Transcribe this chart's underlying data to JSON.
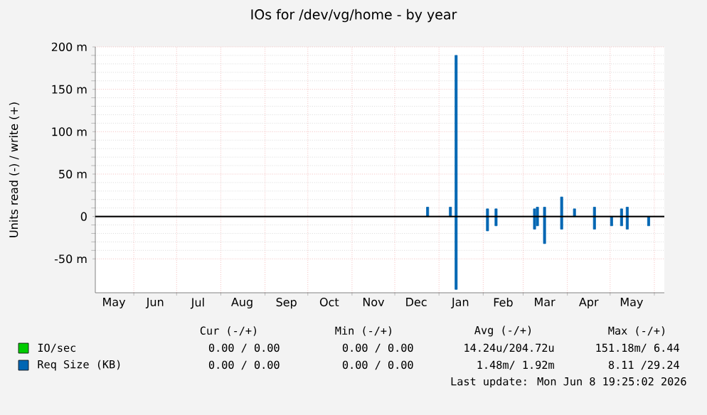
{
  "chart_data": {
    "type": "bar",
    "title": "IOs for /dev/vg/home - by year",
    "ylabel": "Units read (-) / write (+)",
    "x": [
      "2025-12-24",
      "2026-01-09",
      "2026-01-13",
      "2026-02-04",
      "2026-02-10",
      "2026-03-09",
      "2026-03-11",
      "2026-03-16",
      "2026-03-28",
      "2026-04-06",
      "2026-04-20",
      "2026-05-02",
      "2026-05-09",
      "2026-05-13",
      "2026-05-28"
    ],
    "series": [
      {
        "name": "IO/sec",
        "color": "#00cc00",
        "values": [
          0,
          0,
          0,
          0,
          0,
          0,
          0,
          0,
          0,
          0,
          0,
          0,
          0,
          0,
          0
        ]
      },
      {
        "name": "Req Size (KB)",
        "color": "#0066b3",
        "values": [
          11,
          11,
          190,
          9,
          9,
          9,
          11,
          11,
          23,
          9,
          11,
          null,
          9,
          11,
          null
        ]
      },
      {
        "color": "#0066b3",
        "values": [
          null,
          null,
          -86,
          -17,
          -11,
          -15,
          -11,
          -32,
          -15,
          null,
          -15,
          -11,
          -11,
          -15,
          -11
        ]
      }
    ],
    "xlim": [
      "2025-05-05",
      "2026-06-08"
    ],
    "xticks": [
      {
        "value": "2025-06-01",
        "label": null
      },
      {
        "value": "2025-07-01",
        "label": null
      },
      {
        "value": "2025-08-01",
        "label": null
      },
      {
        "value": "2025-09-01",
        "label": null
      },
      {
        "value": "2025-10-01",
        "label": null
      },
      {
        "value": "2025-11-01",
        "label": null
      },
      {
        "value": "2025-12-01",
        "label": null
      },
      {
        "value": "2026-01-01",
        "label": null
      },
      {
        "value": "2026-02-01",
        "label": null
      },
      {
        "value": "2026-03-01",
        "label": null
      },
      {
        "value": "2026-04-01",
        "label": null
      },
      {
        "value": "2026-05-01",
        "label": null
      },
      {
        "value": "2026-06-01",
        "label": null
      },
      {
        "value": "2025-05-18",
        "label": "May"
      },
      {
        "value": "2025-06-16",
        "label": "Jun"
      },
      {
        "value": "2025-07-16",
        "label": "Jul"
      },
      {
        "value": "2025-08-16",
        "label": "Aug"
      },
      {
        "value": "2025-09-16",
        "label": "Sep"
      },
      {
        "value": "2025-10-16",
        "label": "Oct"
      },
      {
        "value": "2025-11-16",
        "label": "Nov"
      },
      {
        "value": "2025-12-16",
        "label": "Dec"
      },
      {
        "value": "2026-01-16",
        "label": "Jan"
      },
      {
        "value": "2026-02-15",
        "label": "Feb"
      },
      {
        "value": "2026-03-16",
        "label": "Mar"
      },
      {
        "value": "2026-04-16",
        "label": "Apr"
      },
      {
        "value": "2026-05-16",
        "label": "May"
      }
    ],
    "ylim": [
      -90,
      200
    ],
    "yticks": [
      {
        "value": -50,
        "label": "-50 m"
      },
      0,
      {
        "value": 50,
        "label": "50 m"
      },
      {
        "value": 100,
        "label": "100 m"
      },
      {
        "value": 150,
        "label": "150 m"
      },
      {
        "value": 200,
        "label": "200 m"
      }
    ],
    "ref_lines": [
      {
        "axis": "y",
        "value": 0,
        "color": "#000000"
      }
    ],
    "grid": true,
    "legend": "bottom",
    "annotations": [
      "Cur (-/+)",
      "Min (-/+)",
      "Avg (-/+)",
      "Max (-/+)",
      "0.00 / 0.00",
      "0.00 / 0.00",
      "14.24u/204.72u",
      "151.18m/ 6.44",
      "0.00 / 0.00",
      "0.00 / 0.00",
      "1.48m/ 1.92m",
      "8.11 /29.24",
      "Last update: Mon Jun 8 19:25:02 2026"
    ]
  }
}
